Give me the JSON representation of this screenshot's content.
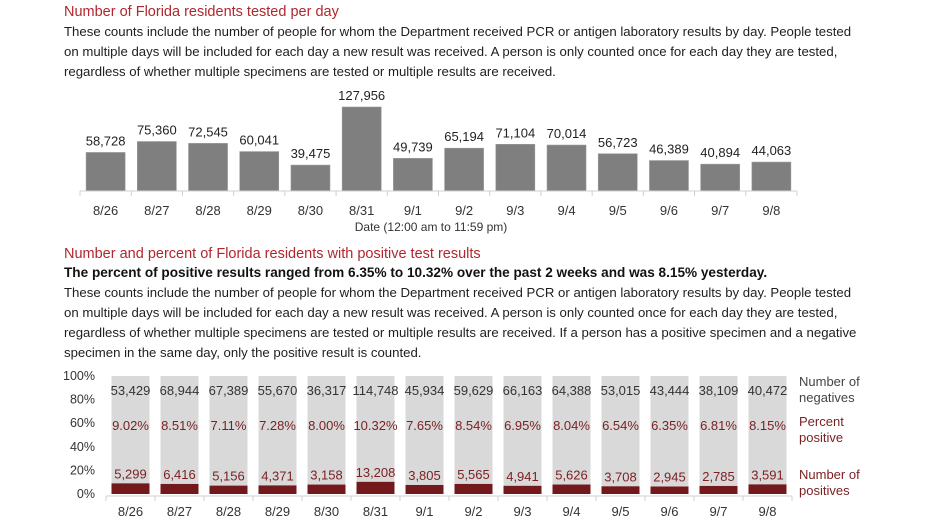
{
  "section1": {
    "title": "Number of Florida residents tested per day",
    "description": "These counts include the number of people for whom the Department received PCR or antigen laboratory results by day. People tested on multiple days will be included for each day a new result was received. A person is only counted once for each day they are tested, regardless of whether multiple specimens are tested or multiple results are received."
  },
  "section2": {
    "title": "Number and percent of Florida residents with positive test results",
    "highlight": "The percent of positive results ranged from 6.35% to 10.32% over the past 2 weeks and was 8.15% yesterday.",
    "description": "These counts include the number of people for whom the Department received PCR or antigen laboratory results by day. People tested on multiple days will be included for each day a new result was received. A person is only counted once for each day they are tested, regardless of whether multiple specimens are tested or multiple results are received. If a person has a positive specimen and a negative specimen in the same day, only the positive result is counted."
  },
  "colors": {
    "title_red": "#b0272d",
    "bar_gray": "#7f7f7f",
    "stack_light": "#d9d9d9",
    "positive_dark": "#74191b",
    "percent_text": "#7a1f22"
  },
  "chart_data": [
    {
      "type": "bar",
      "title": "Number of Florida residents tested per day",
      "xlabel": "Date (12:00 am to 11:59 pm)",
      "ylabel": "",
      "categories": [
        "8/26",
        "8/27",
        "8/28",
        "8/29",
        "8/30",
        "8/31",
        "9/1",
        "9/2",
        "9/3",
        "9/4",
        "9/5",
        "9/6",
        "9/7",
        "9/8"
      ],
      "values": [
        58728,
        75360,
        72545,
        60041,
        39475,
        127956,
        49739,
        65194,
        71104,
        70014,
        56723,
        46389,
        40894,
        44063
      ],
      "value_labels": [
        "58,728",
        "75,360",
        "72,545",
        "60,041",
        "39,475",
        "127,956",
        "49,739",
        "65,194",
        "71,104",
        "70,014",
        "56,723",
        "46,389",
        "40,894",
        "44,063"
      ],
      "ylim": [
        0,
        127956
      ],
      "grid": false
    },
    {
      "type": "bar",
      "stacked": "percent",
      "title": "Number and percent of Florida residents with positive test results",
      "categories": [
        "8/26",
        "8/27",
        "8/28",
        "8/29",
        "8/30",
        "8/31",
        "9/1",
        "9/2",
        "9/3",
        "9/4",
        "9/5",
        "9/6",
        "9/7",
        "9/8"
      ],
      "yticks": [
        "0%",
        "20%",
        "40%",
        "60%",
        "80%",
        "100%"
      ],
      "ylim": [
        0,
        100
      ],
      "series": [
        {
          "name": "Number of positives",
          "values": [
            5299,
            6416,
            5156,
            4371,
            3158,
            13208,
            3805,
            5565,
            4941,
            5626,
            3708,
            2945,
            2785,
            3591
          ],
          "labels": [
            "5,299",
            "6,416",
            "5,156",
            "4,371",
            "3,158",
            "13,208",
            "3,805",
            "5,565",
            "4,941",
            "5,626",
            "3,708",
            "2,945",
            "2,785",
            "3,591"
          ]
        },
        {
          "name": "Number of negatives",
          "values": [
            53429,
            68944,
            67389,
            55670,
            36317,
            114748,
            45934,
            59629,
            66163,
            64388,
            53015,
            43444,
            38109,
            40472
          ],
          "labels": [
            "53,429",
            "68,944",
            "67,389",
            "55,670",
            "36,317",
            "114,748",
            "45,934",
            "59,629",
            "66,163",
            "64,388",
            "53,015",
            "43,444",
            "38,109",
            "40,472"
          ]
        }
      ],
      "percent_positive": {
        "name": "Percent positive",
        "values": [
          9.02,
          8.51,
          7.11,
          7.28,
          8.0,
          10.32,
          7.65,
          8.54,
          6.95,
          8.04,
          6.54,
          6.35,
          6.81,
          8.15
        ],
        "labels": [
          "9.02%",
          "8.51%",
          "7.11%",
          "7.28%",
          "8.00%",
          "10.32%",
          "7.65%",
          "8.54%",
          "6.95%",
          "8.04%",
          "6.54%",
          "6.35%",
          "6.81%",
          "8.15%"
        ]
      },
      "legend": [
        {
          "line1": "Number of",
          "line2": "negatives"
        },
        {
          "line1": "Percent",
          "line2": "positive"
        },
        {
          "line1": "Number of",
          "line2": "positives"
        }
      ],
      "legend_position": "right",
      "grid": false
    }
  ]
}
